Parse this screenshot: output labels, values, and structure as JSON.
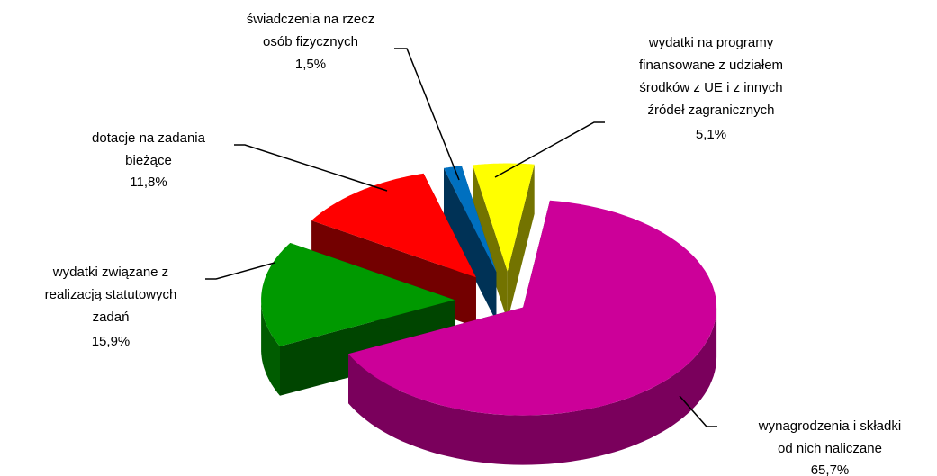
{
  "chart_data": {
    "type": "pie3d",
    "categories": [
      "wydatki na programy\nfinansowane z udziałem\nśrodków z UE i z innych\nźródeł zagranicznych",
      "wynagrodzenia i składki\nod nich naliczane",
      "wydatki związane z\nrealizacją statutowych\nzadań",
      "dotacje na zadania\nbieżące",
      "świadczenia na rzecz\nosób fizycznych"
    ],
    "values": [
      5.1,
      65.7,
      15.9,
      11.8,
      1.5
    ],
    "value_labels": [
      "5,1%",
      "65,7%",
      "15,9%",
      "11,8%",
      "1,5%"
    ],
    "colors": [
      "#ffff00",
      "#cc0099",
      "#009900",
      "#ff0000",
      "#0070c0"
    ]
  }
}
